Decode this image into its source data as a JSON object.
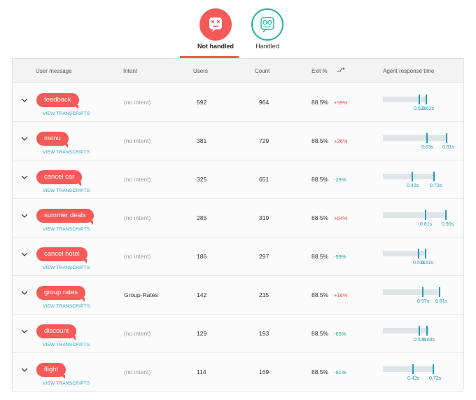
{
  "tabs": [
    {
      "label": "Not handled",
      "active": true,
      "icon": "dizzy-face-icon"
    },
    {
      "label": "Handled",
      "active": false,
      "icon": "glasses-face-icon"
    }
  ],
  "columns": {
    "user_message": "User message",
    "intent": "Intent",
    "users": "Users",
    "count": "Count",
    "exit": "Exit %",
    "sort_icon": "sort-trend-icon",
    "agent_response_time": "Agent response time"
  },
  "view_transcripts_label": "VIEW TRANSCRIPTS",
  "colors": {
    "accent": "#f45a57",
    "handled": "#23b39f",
    "link": "#1ea5c1",
    "up": "#e5484a",
    "down": "#23a88f"
  },
  "rows": [
    {
      "message": "feedback",
      "intent": "(no intent)",
      "users": "592",
      "count": "964",
      "exit": "88.5%",
      "delta": "+39%",
      "direction": "up",
      "t1": "0.52s",
      "t2": "0.62s",
      "track_end": 0.62
    },
    {
      "message": "menu",
      "intent": "(no intent)",
      "users": "381",
      "count": "729",
      "exit": "88.5%",
      "delta": "+26%",
      "direction": "up",
      "t1": "0.63s",
      "t2": "0.91s",
      "track_end": 0.7
    },
    {
      "message": "cancel car",
      "intent": "(no intent)",
      "users": "325",
      "count": "651",
      "exit": "88.5%",
      "delta": "-29%",
      "direction": "down",
      "t1": "0.42s",
      "t2": "0.73s",
      "track_end": 0.5
    },
    {
      "message": "summer deals",
      "intent": "(no intent)",
      "users": "285",
      "count": "319",
      "exit": "88.5%",
      "delta": "+64%",
      "direction": "up",
      "t1": "0.61s",
      "t2": "0.90s",
      "track_end": 0.7
    },
    {
      "message": "cancel hotel",
      "intent": "(no intent)",
      "users": "186",
      "count": "297",
      "exit": "88.5%",
      "delta": "-59%",
      "direction": "down",
      "t1": "0.51s",
      "t2": "0.61s",
      "track_end": 0.62
    },
    {
      "message": "group rates",
      "intent": "Group-Rates",
      "users": "142",
      "count": "215",
      "exit": "88.5%",
      "delta": "+16%",
      "direction": "up",
      "t1": "0.57s",
      "t2": "0.81s",
      "track_end": 0.66
    },
    {
      "message": "discount",
      "intent": "(no intent)",
      "users": "129",
      "count": "193",
      "exit": "88.5%",
      "delta": "-65%",
      "direction": "down",
      "t1": "0.52s",
      "t2": "0.63s",
      "track_end": 0.66
    },
    {
      "message": "flight",
      "intent": "(no intent)",
      "users": "114",
      "count": "169",
      "exit": "88.5%",
      "delta": "-91%",
      "direction": "down",
      "t1": "0.43s",
      "t2": "0.72s",
      "track_end": 0.52
    }
  ]
}
